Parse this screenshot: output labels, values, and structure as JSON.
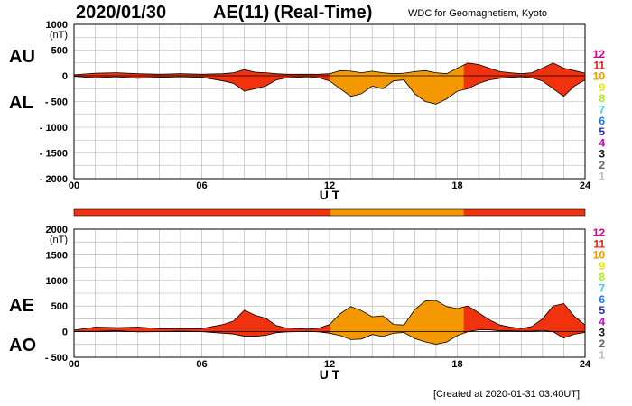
{
  "header": {
    "date": "2020/01/30",
    "title": "AE(11) (Real-Time)",
    "organization": "WDC for Geomagnetism, Kyoto"
  },
  "footer": {
    "created": "[Created at 2020-01-31 03:40UT]"
  },
  "legend": {
    "labels": [
      "12",
      "11",
      "10",
      "9",
      "8",
      "7",
      "6",
      "5",
      "4",
      "3",
      "2",
      "1"
    ],
    "colors": [
      "#e6007e",
      "#e3221a",
      "#f39800",
      "#e6e600",
      "#b4e61e",
      "#3cd2e6",
      "#1e78f0",
      "#2828b4",
      "#c800c8",
      "#141414",
      "#646464",
      "#bebebe"
    ]
  },
  "colors": {
    "orange": "#f39800",
    "red": "#f0320f"
  },
  "chart_data": [
    {
      "type": "area",
      "id": "au_al",
      "series": [
        {
          "name": "AU",
          "x": [
            0,
            1,
            2,
            3,
            4,
            5,
            6,
            7,
            7.5,
            8,
            8.5,
            9,
            9.5,
            10,
            10.5,
            11,
            11.5,
            12,
            12.5,
            13,
            13.5,
            14,
            14.5,
            15,
            15.5,
            16,
            16.5,
            17,
            17.5,
            18,
            18.5,
            19,
            19.5,
            20,
            20.5,
            21,
            21.5,
            22,
            22.5,
            23,
            23.5,
            24
          ],
          "values": [
            20,
            50,
            60,
            40,
            30,
            40,
            30,
            40,
            60,
            120,
            70,
            60,
            40,
            30,
            30,
            30,
            30,
            40,
            100,
            90,
            60,
            90,
            60,
            40,
            50,
            80,
            100,
            60,
            40,
            150,
            250,
            220,
            150,
            80,
            60,
            40,
            60,
            150,
            250,
            150,
            100,
            50
          ]
        },
        {
          "name": "AL",
          "x": [
            0,
            1,
            2,
            3,
            4,
            5,
            6,
            7,
            7.5,
            8,
            8.5,
            9,
            9.5,
            10,
            10.5,
            11,
            11.5,
            12,
            12.5,
            13,
            13.5,
            14,
            14.5,
            15,
            15.5,
            16,
            16.5,
            17,
            17.5,
            18,
            18.5,
            19,
            19.5,
            20,
            20.5,
            21,
            21.5,
            22,
            22.5,
            23,
            23.5,
            24
          ],
          "values": [
            -10,
            -40,
            -20,
            -50,
            -30,
            -20,
            -30,
            -100,
            -150,
            -300,
            -250,
            -200,
            -80,
            -40,
            -30,
            -20,
            -40,
            -100,
            -250,
            -400,
            -350,
            -200,
            -250,
            -100,
            -80,
            -350,
            -500,
            -550,
            -450,
            -300,
            -250,
            -150,
            -80,
            -50,
            -30,
            -20,
            -40,
            -100,
            -250,
            -400,
            -200,
            -80
          ]
        }
      ],
      "segments": [
        {
          "from": 0,
          "to": 12,
          "color": "red"
        },
        {
          "from": 12,
          "to": 18.3,
          "color": "orange"
        },
        {
          "from": 18.3,
          "to": 24,
          "color": "red"
        }
      ],
      "left_labels": [
        "AU",
        "AL"
      ],
      "ylabel": "(nT)",
      "ylim": [
        -2000,
        1000
      ],
      "yticks": [
        "1000",
        "500",
        "0",
        "- 500",
        "- 1000",
        "- 1500",
        "- 2000"
      ],
      "xticks": [
        "00",
        "06",
        "12",
        "18",
        "24"
      ],
      "xlabel": "U T",
      "grid": true
    },
    {
      "type": "area",
      "id": "ae_ao",
      "series": [
        {
          "name": "AE",
          "x": [
            0,
            1,
            2,
            3,
            4,
            5,
            6,
            7,
            7.5,
            8,
            8.5,
            9,
            9.5,
            10,
            10.5,
            11,
            11.5,
            12,
            12.5,
            13,
            13.5,
            14,
            14.5,
            15,
            15.5,
            16,
            16.5,
            17,
            17.5,
            18,
            18.5,
            19,
            19.5,
            20,
            20.5,
            21,
            21.5,
            22,
            22.5,
            23,
            23.5,
            24
          ],
          "values": [
            30,
            90,
            80,
            90,
            60,
            60,
            60,
            140,
            210,
            420,
            320,
            260,
            120,
            70,
            60,
            50,
            70,
            140,
            350,
            490,
            410,
            290,
            310,
            140,
            130,
            430,
            600,
            610,
            490,
            450,
            500,
            370,
            230,
            130,
            90,
            60,
            100,
            250,
            500,
            550,
            300,
            130
          ]
        },
        {
          "name": "AO",
          "x": [
            0,
            1,
            2,
            3,
            4,
            5,
            6,
            7,
            7.5,
            8,
            8.5,
            9,
            9.5,
            10,
            10.5,
            11,
            11.5,
            12,
            12.5,
            13,
            13.5,
            14,
            14.5,
            15,
            15.5,
            16,
            16.5,
            17,
            17.5,
            18,
            18.5,
            19,
            19.5,
            20,
            20.5,
            21,
            21.5,
            22,
            22.5,
            23,
            23.5,
            24
          ],
          "values": [
            5,
            5,
            20,
            -5,
            0,
            10,
            0,
            -30,
            -45,
            -90,
            -90,
            -70,
            -20,
            -5,
            0,
            5,
            -5,
            -30,
            -75,
            -155,
            -145,
            -55,
            -95,
            -30,
            -15,
            -135,
            -200,
            -245,
            -205,
            -75,
            0,
            35,
            35,
            15,
            15,
            10,
            10,
            25,
            0,
            -125,
            -50,
            -15
          ]
        }
      ],
      "segments": [
        {
          "from": 0,
          "to": 12,
          "color": "red"
        },
        {
          "from": 12,
          "to": 18.3,
          "color": "orange"
        },
        {
          "from": 18.3,
          "to": 24,
          "color": "red"
        }
      ],
      "left_labels": [
        "AE",
        "AO"
      ],
      "ylabel": "(nT)",
      "ylim": [
        -500,
        2000
      ],
      "yticks": [
        "2000",
        "1500",
        "1000",
        "500",
        "0",
        "- 500"
      ],
      "xticks": [
        "00",
        "06",
        "12",
        "18",
        "24"
      ],
      "xlabel": "U T",
      "grid": true
    }
  ]
}
